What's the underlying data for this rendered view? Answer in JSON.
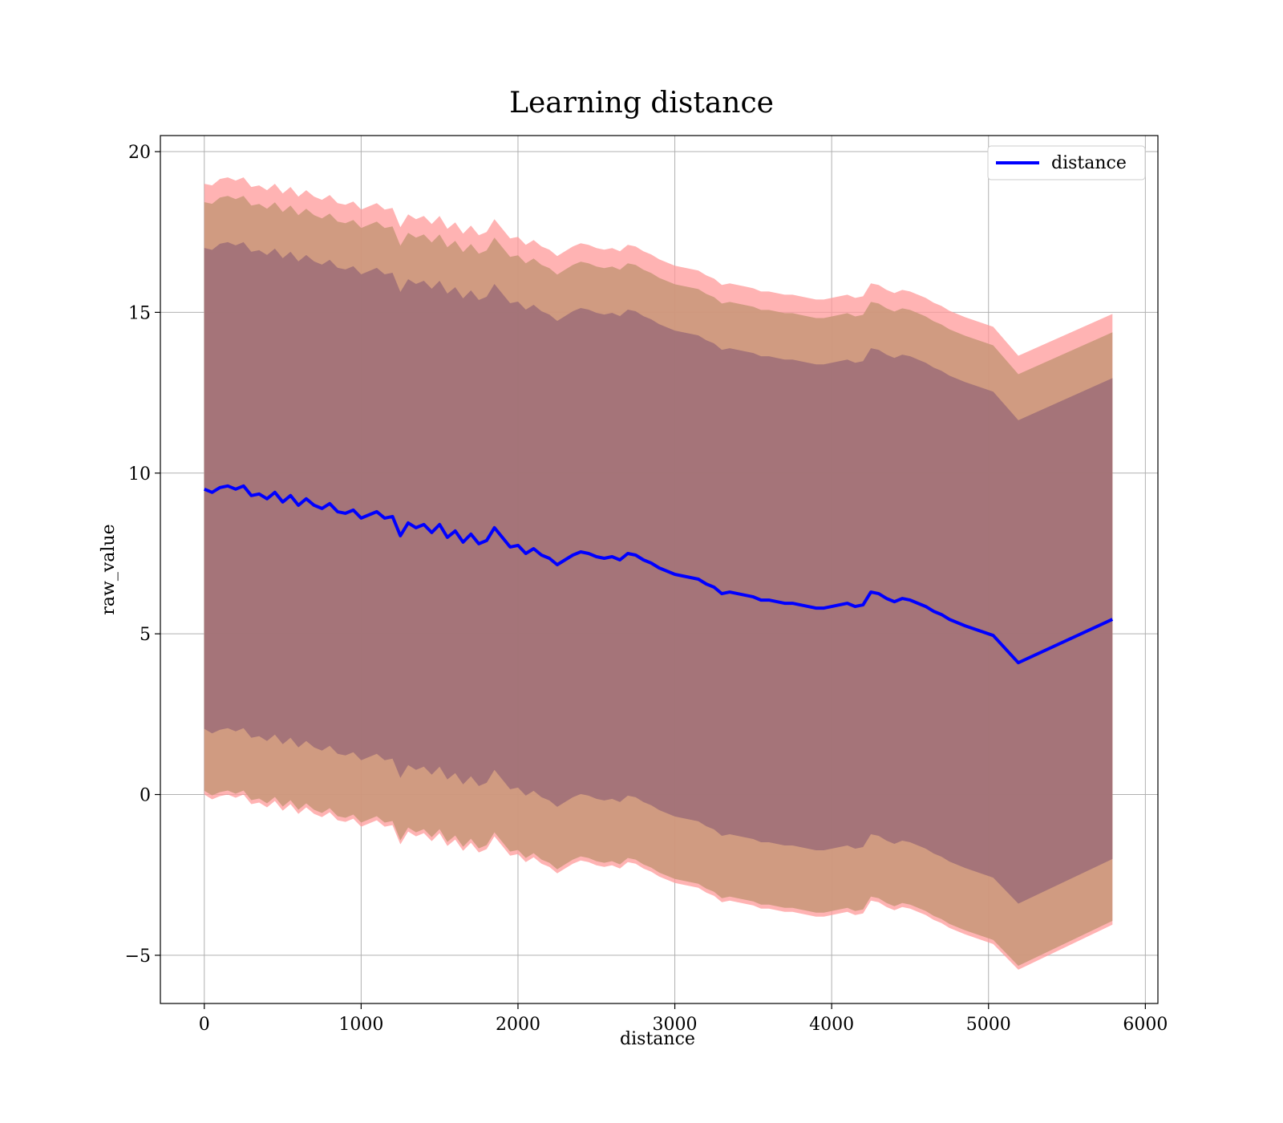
{
  "chart_data": {
    "type": "line",
    "title": "Learning distance",
    "xlabel": "distance",
    "ylabel": "raw_value",
    "xlim": [
      -280,
      6080
    ],
    "ylim": [
      -6.5,
      20.5
    ],
    "xticks": [
      0,
      1000,
      2000,
      3000,
      4000,
      5000,
      6000
    ],
    "xtick_labels": [
      "0",
      "1000",
      "2000",
      "3000",
      "4000",
      "5000",
      "6000"
    ],
    "yticks": [
      -5,
      0,
      5,
      10,
      15,
      20
    ],
    "ytick_labels": [
      "−5",
      "0",
      "5",
      "10",
      "15",
      "20"
    ],
    "grid": true,
    "legend": {
      "position": "upper right",
      "entries": [
        "distance"
      ]
    },
    "colors": {
      "line": "#0000ff",
      "band_outer": "#ff9999",
      "band_middle": "#c89678",
      "band_inner": "#a07078",
      "grid": "#b0b0b0"
    },
    "series": [
      {
        "name": "distance",
        "x": [
          0,
          50,
          100,
          150,
          200,
          250,
          300,
          350,
          400,
          450,
          500,
          550,
          600,
          650,
          700,
          750,
          800,
          850,
          900,
          950,
          1000,
          1050,
          1100,
          1150,
          1200,
          1250,
          1300,
          1350,
          1400,
          1450,
          1500,
          1550,
          1600,
          1650,
          1700,
          1750,
          1800,
          1850,
          1900,
          1950,
          2000,
          2050,
          2100,
          2150,
          2200,
          2250,
          2300,
          2350,
          2400,
          2450,
          2500,
          2550,
          2600,
          2650,
          2700,
          2750,
          2800,
          2850,
          2900,
          2950,
          3000,
          3050,
          3100,
          3150,
          3200,
          3250,
          3300,
          3350,
          3400,
          3450,
          3500,
          3550,
          3600,
          3650,
          3700,
          3750,
          3800,
          3850,
          3900,
          3950,
          4000,
          4050,
          4100,
          4150,
          4200,
          4250,
          4300,
          4350,
          4400,
          4450,
          4500,
          4550,
          4600,
          4650,
          4700,
          4750,
          4850,
          5030,
          5190,
          5790
        ],
        "y": [
          9.5,
          9.4,
          9.55,
          9.6,
          9.5,
          9.6,
          9.3,
          9.35,
          9.2,
          9.4,
          9.1,
          9.3,
          9.0,
          9.2,
          9.0,
          8.9,
          9.05,
          8.8,
          8.75,
          8.85,
          8.6,
          8.7,
          8.8,
          8.6,
          8.65,
          8.05,
          8.45,
          8.3,
          8.4,
          8.15,
          8.4,
          8.0,
          8.2,
          7.85,
          8.1,
          7.8,
          7.9,
          8.3,
          8.0,
          7.7,
          7.75,
          7.5,
          7.65,
          7.45,
          7.35,
          7.15,
          7.3,
          7.45,
          7.55,
          7.5,
          7.4,
          7.35,
          7.4,
          7.3,
          7.5,
          7.45,
          7.3,
          7.2,
          7.05,
          6.95,
          6.85,
          6.8,
          6.75,
          6.7,
          6.55,
          6.45,
          6.25,
          6.3,
          6.25,
          6.2,
          6.15,
          6.05,
          6.05,
          6.0,
          5.95,
          5.95,
          5.9,
          5.85,
          5.8,
          5.8,
          5.85,
          5.9,
          5.95,
          5.85,
          5.9,
          6.3,
          6.25,
          6.1,
          6.0,
          6.1,
          6.05,
          5.95,
          5.85,
          5.7,
          5.6,
          5.45,
          5.25,
          4.95,
          4.1,
          5.45
        ],
        "std": [
          9.5,
          9.55,
          9.6,
          9.6,
          9.6,
          9.6,
          9.6,
          9.6,
          9.6,
          9.6,
          9.6,
          9.6,
          9.6,
          9.6,
          9.6,
          9.6,
          9.6,
          9.6,
          9.6,
          9.6,
          9.6,
          9.6,
          9.6,
          9.6,
          9.6,
          9.6,
          9.6,
          9.6,
          9.6,
          9.6,
          9.6,
          9.6,
          9.6,
          9.6,
          9.6,
          9.6,
          9.6,
          9.6,
          9.6,
          9.6,
          9.6,
          9.6,
          9.6,
          9.6,
          9.6,
          9.6,
          9.6,
          9.6,
          9.6,
          9.6,
          9.6,
          9.6,
          9.6,
          9.6,
          9.6,
          9.6,
          9.6,
          9.6,
          9.6,
          9.6,
          9.6,
          9.6,
          9.6,
          9.6,
          9.6,
          9.6,
          9.6,
          9.6,
          9.6,
          9.6,
          9.6,
          9.6,
          9.6,
          9.6,
          9.6,
          9.6,
          9.6,
          9.6,
          9.6,
          9.6,
          9.6,
          9.6,
          9.6,
          9.6,
          9.6,
          9.6,
          9.6,
          9.6,
          9.6,
          9.6,
          9.6,
          9.6,
          9.6,
          9.6,
          9.6,
          9.6,
          9.6,
          9.6,
          9.55,
          9.5
        ],
        "bands": [
          {
            "offset_sd": 1.0,
            "lower_shift": 0.0
          },
          {
            "offset_sd": 0.95,
            "lower_shift": 0.0
          },
          {
            "offset_sd": 0.8,
            "lower_shift": 0.0
          }
        ]
      }
    ]
  }
}
